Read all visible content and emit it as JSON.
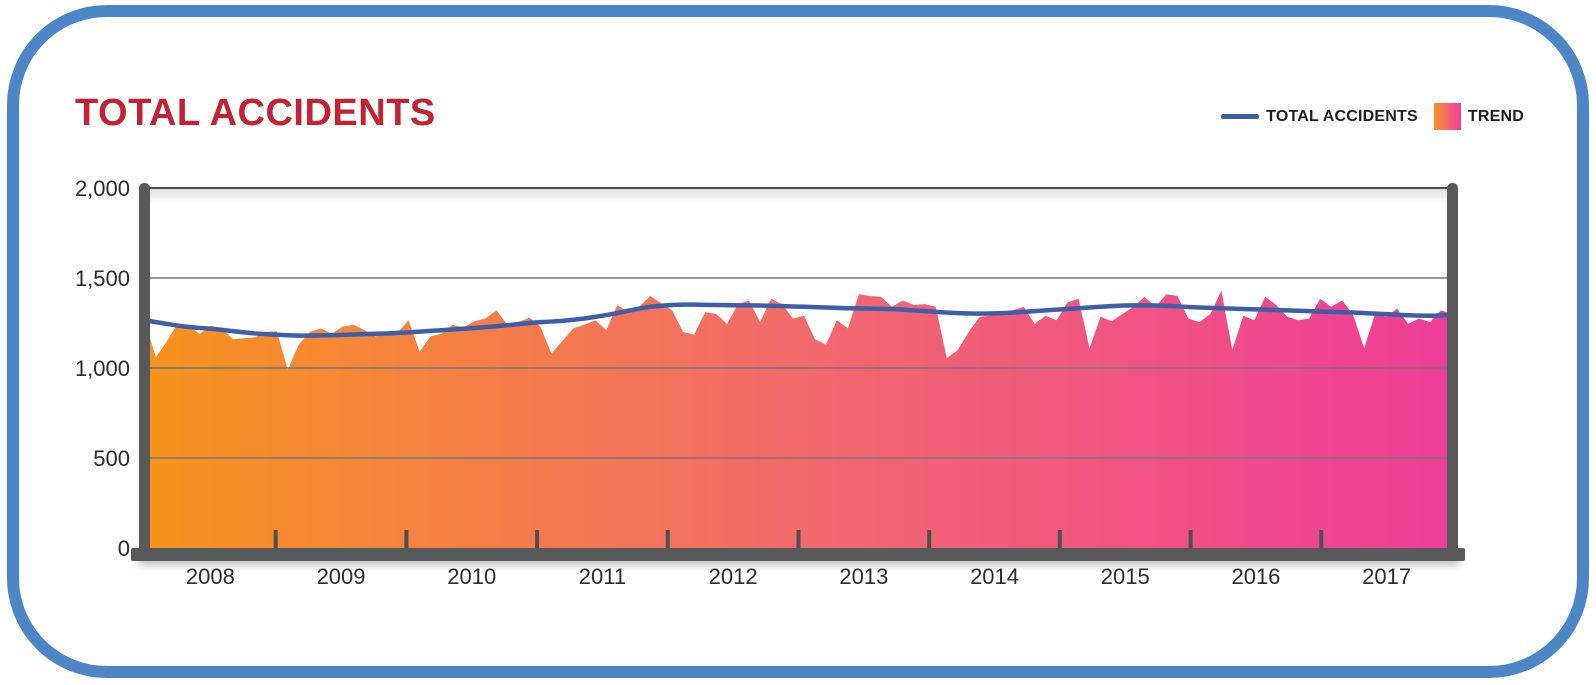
{
  "page": {
    "frame_border_color": "#4D86C6",
    "background": "#FFFFFF"
  },
  "title": {
    "text": "TOTAL ACCIDENTS",
    "color": "#C22233"
  },
  "legend": {
    "items": [
      {
        "label": "TOTAL ACCIDENTS",
        "swatch": "line",
        "color": "#3C5FA8"
      },
      {
        "label": "TREND",
        "swatch": "gradient",
        "colors": [
          "#F7931E",
          "#F26A6C",
          "#EE3D98"
        ]
      }
    ]
  },
  "axes": {
    "y_tick_labels": [
      "2,000",
      "1,500",
      "1,000",
      "500",
      "0"
    ],
    "y_tick_values": [
      2000,
      1500,
      1000,
      500,
      0
    ],
    "x_tick_labels": [
      "2008",
      "2009",
      "2010",
      "2011",
      "2012",
      "2013",
      "2014",
      "2015",
      "2016",
      "2017"
    ],
    "axis_bar_color": "#58595B",
    "gridline_color": "#77787B",
    "label_color": "#2B2B2B"
  },
  "chart_data": {
    "type": "area",
    "title": "TOTAL ACCIDENTS",
    "xlabel": "",
    "ylabel": "",
    "ylim": [
      0,
      2000
    ],
    "grid": "horizontal",
    "legend_position": "top-right",
    "x_start": "2008-01",
    "x_end": "2017-12",
    "x_tick_labels": [
      "2008",
      "2009",
      "2010",
      "2011",
      "2012",
      "2013",
      "2014",
      "2015",
      "2016",
      "2017"
    ],
    "series": [
      {
        "name": "TREND",
        "type": "area",
        "gradient": [
          "#F7931E",
          "#F26A6C",
          "#EE3D98"
        ],
        "values": [
          1250,
          1060,
          1150,
          1250,
          1230,
          1190,
          1235,
          1220,
          1160,
          1165,
          1170,
          1200,
          1205,
          990,
          1130,
          1200,
          1220,
          1190,
          1230,
          1240,
          1210,
          1175,
          1200,
          1195,
          1265,
          1090,
          1175,
          1190,
          1240,
          1225,
          1260,
          1275,
          1320,
          1240,
          1255,
          1280,
          1230,
          1080,
          1150,
          1220,
          1240,
          1265,
          1210,
          1350,
          1310,
          1340,
          1400,
          1360,
          1320,
          1200,
          1185,
          1310,
          1300,
          1245,
          1355,
          1375,
          1255,
          1385,
          1355,
          1275,
          1290,
          1160,
          1130,
          1265,
          1220,
          1410,
          1400,
          1395,
          1340,
          1375,
          1350,
          1355,
          1340,
          1055,
          1100,
          1200,
          1285,
          1290,
          1310,
          1320,
          1340,
          1245,
          1290,
          1265,
          1365,
          1385,
          1110,
          1285,
          1260,
          1300,
          1340,
          1395,
          1340,
          1410,
          1400,
          1275,
          1255,
          1300,
          1430,
          1100,
          1290,
          1265,
          1395,
          1350,
          1285,
          1265,
          1275,
          1385,
          1340,
          1375,
          1295,
          1110,
          1300,
          1285,
          1330,
          1245,
          1275,
          1255,
          1320,
          1300
        ]
      },
      {
        "name": "TOTAL ACCIDENTS",
        "type": "line",
        "color": "#3C5FA8",
        "values": [
          1265,
          1255,
          1245,
          1235,
          1228,
          1222,
          1218,
          1212,
          1205,
          1198,
          1192,
          1188,
          1185,
          1182,
          1180,
          1180,
          1181,
          1182,
          1184,
          1186,
          1188,
          1190,
          1192,
          1195,
          1198,
          1202,
          1206,
          1210,
          1214,
          1218,
          1222,
          1227,
          1232,
          1238,
          1244,
          1250,
          1255,
          1258,
          1262,
          1268,
          1275,
          1284,
          1294,
          1305,
          1318,
          1330,
          1340,
          1346,
          1350,
          1352,
          1352,
          1351,
          1350,
          1349,
          1348,
          1348,
          1347,
          1346,
          1344,
          1342,
          1340,
          1338,
          1336,
          1334,
          1332,
          1331,
          1330,
          1329,
          1327,
          1324,
          1320,
          1316,
          1312,
          1308,
          1305,
          1303,
          1302,
          1303,
          1305,
          1308,
          1312,
          1316,
          1320,
          1324,
          1328,
          1332,
          1336,
          1340,
          1344,
          1347,
          1348,
          1348,
          1347,
          1345,
          1342,
          1339,
          1336,
          1334,
          1332,
          1330,
          1328,
          1326,
          1324,
          1322,
          1320,
          1318,
          1316,
          1314,
          1312,
          1310,
          1308,
          1305,
          1302,
          1299,
          1296,
          1293,
          1291,
          1290,
          1292,
          1295
        ]
      }
    ]
  }
}
